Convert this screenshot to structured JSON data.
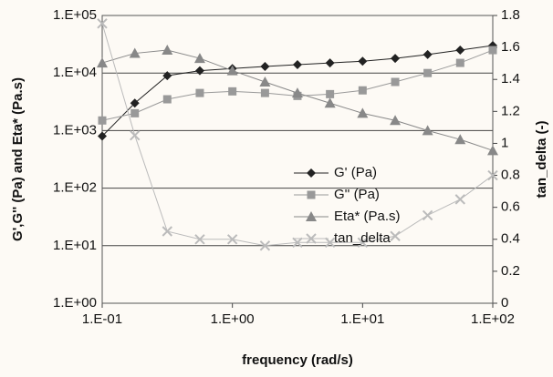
{
  "chart_data": {
    "type": "line",
    "x_label": "frequency (rad/s)",
    "y_label": "G',G'' (Pa) and Eta* (Pa.s)",
    "y2_label": "tan_delta (-)",
    "x": [
      0.1,
      0.178,
      0.316,
      0.562,
      1,
      1.78,
      3.16,
      5.62,
      10,
      17.8,
      31.6,
      56.2,
      100
    ],
    "series": [
      {
        "name": "G' (Pa)",
        "color": "#222222",
        "marker": "diamond",
        "values": [
          800,
          3000,
          9000,
          11000,
          12000,
          13000,
          14000,
          15000,
          16000,
          18000,
          21000,
          25000,
          30000
        ]
      },
      {
        "name": "G'' (Pa)",
        "color": "#999999",
        "marker": "square",
        "values": [
          1500,
          2000,
          3500,
          4500,
          4800,
          4500,
          4000,
          4300,
          5000,
          7000,
          10000,
          15000,
          25000
        ]
      },
      {
        "name": "Eta* (Pa.s)",
        "color": "#888888",
        "marker": "triangle",
        "values": [
          15000,
          22000,
          25000,
          18000,
          11000,
          7000,
          4500,
          3000,
          2000,
          1500,
          1000,
          700,
          450
        ]
      },
      {
        "name": "tan_delta",
        "color": "#bbbbbb",
        "marker": "x",
        "axis": "y2",
        "values": [
          1.75,
          1.05,
          0.45,
          0.4,
          0.4,
          0.36,
          0.38,
          0.38,
          0.38,
          0.42,
          0.55,
          0.65,
          0.8
        ]
      }
    ],
    "xscale": "log",
    "yscale": "log",
    "xlim": [
      0.1,
      100
    ],
    "xticks": [
      {
        "value": 0.1,
        "label": "1.E-01"
      },
      {
        "value": 1,
        "label": "1.E+00"
      },
      {
        "value": 10,
        "label": "1.E+01"
      },
      {
        "value": 100,
        "label": "1.E+02"
      }
    ],
    "ylim": [
      1,
      100000
    ],
    "yticks": [
      {
        "value": 1,
        "label": "1.E+00"
      },
      {
        "value": 10,
        "label": "1.E+01"
      },
      {
        "value": 100,
        "label": "1.E+02"
      },
      {
        "value": 1000,
        "label": "1.E+03"
      },
      {
        "value": 10000,
        "label": "1.E+04"
      },
      {
        "value": 100000,
        "label": "1.E+05"
      }
    ],
    "y2lim": [
      0,
      1.8
    ],
    "y2ticks": [
      0,
      0.2,
      0.4,
      0.6,
      0.8,
      1,
      1.2,
      1.4,
      1.6,
      1.8
    ],
    "grid": true
  }
}
